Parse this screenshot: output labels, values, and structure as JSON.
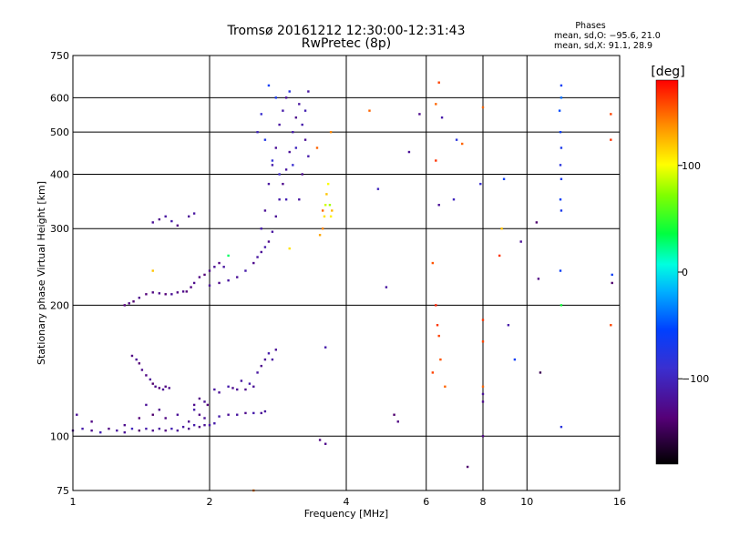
{
  "chart_data": {
    "type": "scatter",
    "title": "Tromsø 20161212 12:30:00-12:31:43",
    "subtitle": "RwPretec (8p)",
    "xlabel": "Frequency [MHz]",
    "ylabel": "Stationary phase Virtual Height [km]",
    "x_scale": "log",
    "y_scale": "log",
    "xlim": [
      1,
      16
    ],
    "ylim": [
      75,
      750
    ],
    "x_ticks": [
      1,
      2,
      4,
      6,
      8,
      10,
      16
    ],
    "x_tick_labels": [
      "1",
      "2",
      "4",
      "6",
      "8",
      "10",
      "16"
    ],
    "y_ticks": [
      75,
      100,
      200,
      300,
      400,
      500,
      600,
      750
    ],
    "y_tick_labels": [
      "75",
      "100",
      "200",
      "300",
      "400",
      "500",
      "600",
      "750"
    ],
    "grid": true,
    "stats": {
      "header": "Phases",
      "line_o": "mean, sd,O: −95.6, 21.0",
      "line_x": "mean, sd,X:  91.1, 28.9"
    },
    "colorbar": {
      "label": "[deg]",
      "range": [
        -180,
        180
      ],
      "ticks": [
        100,
        0,
        -100
      ],
      "tick_labels": [
        "100",
        "0",
        "−100"
      ]
    },
    "points": [
      [
        1.0,
        103,
        -120
      ],
      [
        1.05,
        104,
        -110
      ],
      [
        1.1,
        103,
        -125
      ],
      [
        1.15,
        102,
        -105
      ],
      [
        1.2,
        104,
        -130
      ],
      [
        1.25,
        103,
        -115
      ],
      [
        1.3,
        102,
        -120
      ],
      [
        1.35,
        104,
        -100
      ],
      [
        1.4,
        103,
        -140
      ],
      [
        1.45,
        104,
        -110
      ],
      [
        1.5,
        103,
        -125
      ],
      [
        1.55,
        104,
        -115
      ],
      [
        1.6,
        103,
        -130
      ],
      [
        1.65,
        104,
        -105
      ],
      [
        1.7,
        103,
        -120
      ],
      [
        1.75,
        105,
        -115
      ],
      [
        1.8,
        104,
        -125
      ],
      [
        1.85,
        106,
        -110
      ],
      [
        1.9,
        105,
        -130
      ],
      [
        1.95,
        106,
        -120
      ],
      [
        2.0,
        106,
        -115
      ],
      [
        2.05,
        107,
        -110
      ],
      [
        1.02,
        112,
        -120
      ],
      [
        1.1,
        108,
        -130
      ],
      [
        1.3,
        106,
        -125
      ],
      [
        1.4,
        110,
        -135
      ],
      [
        1.45,
        118,
        -120
      ],
      [
        1.5,
        112,
        -140
      ],
      [
        1.55,
        115,
        -125
      ],
      [
        1.6,
        110,
        -130
      ],
      [
        1.7,
        112,
        -120
      ],
      [
        1.8,
        108,
        -125
      ],
      [
        1.85,
        115,
        -110
      ],
      [
        1.9,
        112,
        -130
      ],
      [
        1.95,
        110,
        -120
      ],
      [
        2.1,
        111,
        -110
      ],
      [
        2.2,
        112,
        -120
      ],
      [
        2.3,
        112,
        -115
      ],
      [
        2.4,
        113,
        -125
      ],
      [
        2.5,
        113,
        -110
      ],
      [
        2.6,
        113,
        -120
      ],
      [
        2.65,
        114,
        -115
      ],
      [
        1.85,
        118,
        -125
      ],
      [
        1.9,
        122,
        -130
      ],
      [
        1.95,
        120,
        -120
      ],
      [
        1.98,
        118,
        -135
      ],
      [
        2.05,
        128,
        -115
      ],
      [
        2.1,
        126,
        -120
      ],
      [
        2.2,
        130,
        -110
      ],
      [
        2.25,
        129,
        -125
      ],
      [
        2.3,
        128,
        -120
      ],
      [
        2.35,
        134,
        -115
      ],
      [
        2.4,
        128,
        -125
      ],
      [
        2.45,
        132,
        -110
      ],
      [
        2.5,
        130,
        -120
      ],
      [
        2.55,
        140,
        -115
      ],
      [
        2.6,
        145,
        -125
      ],
      [
        2.65,
        150,
        -120
      ],
      [
        2.7,
        155,
        -110
      ],
      [
        2.75,
        150,
        -115
      ],
      [
        2.8,
        158,
        -120
      ],
      [
        1.35,
        153,
        -130
      ],
      [
        1.38,
        150,
        -120
      ],
      [
        1.4,
        147,
        -135
      ],
      [
        1.42,
        142,
        -125
      ],
      [
        1.45,
        138,
        -130
      ],
      [
        1.48,
        135,
        -120
      ],
      [
        1.5,
        132,
        -140
      ],
      [
        1.52,
        130,
        -125
      ],
      [
        1.55,
        129,
        -135
      ],
      [
        1.58,
        128,
        -120
      ],
      [
        1.6,
        130,
        -130
      ],
      [
        1.63,
        129,
        -125
      ],
      [
        1.3,
        200,
        -135
      ],
      [
        1.33,
        202,
        -130
      ],
      [
        1.36,
        204,
        -140
      ],
      [
        1.4,
        208,
        -125
      ],
      [
        1.45,
        212,
        -135
      ],
      [
        1.5,
        214,
        -130
      ],
      [
        1.55,
        213,
        -125
      ],
      [
        1.6,
        212,
        -135
      ],
      [
        1.65,
        212,
        -120
      ],
      [
        1.7,
        214,
        -130
      ],
      [
        1.75,
        215,
        -125
      ],
      [
        1.78,
        215,
        -135
      ],
      [
        1.82,
        220,
        -130
      ],
      [
        1.85,
        225,
        -125
      ],
      [
        1.9,
        232,
        -130
      ],
      [
        1.95,
        235,
        -135
      ],
      [
        2.0,
        240,
        -125
      ],
      [
        2.05,
        245,
        -120
      ],
      [
        2.1,
        250,
        -130
      ],
      [
        2.15,
        245,
        -115
      ],
      [
        2.0,
        222,
        -120
      ],
      [
        2.1,
        225,
        -125
      ],
      [
        2.2,
        228,
        -115
      ],
      [
        2.3,
        232,
        -120
      ],
      [
        2.4,
        240,
        -110
      ],
      [
        2.5,
        250,
        -125
      ],
      [
        2.55,
        258,
        -115
      ],
      [
        2.6,
        265,
        -120
      ],
      [
        2.65,
        272,
        -110
      ],
      [
        2.7,
        280,
        -125
      ],
      [
        2.75,
        295,
        -115
      ],
      [
        2.8,
        320,
        -120
      ],
      [
        2.85,
        350,
        -110
      ],
      [
        2.9,
        380,
        -125
      ],
      [
        2.95,
        410,
        -115
      ],
      [
        3.0,
        450,
        -120
      ],
      [
        3.05,
        500,
        -110
      ],
      [
        3.1,
        540,
        -125
      ],
      [
        3.15,
        580,
        -115
      ],
      [
        2.6,
        300,
        -110
      ],
      [
        2.65,
        330,
        -120
      ],
      [
        2.7,
        380,
        -115
      ],
      [
        2.75,
        420,
        -110
      ],
      [
        2.8,
        460,
        -120
      ],
      [
        2.85,
        520,
        -115
      ],
      [
        2.9,
        560,
        -110
      ],
      [
        2.95,
        600,
        -120
      ],
      [
        3.0,
        620,
        -80
      ],
      [
        2.7,
        640,
        -60
      ],
      [
        2.8,
        600,
        -70
      ],
      [
        2.6,
        550,
        -90
      ],
      [
        2.55,
        500,
        -100
      ],
      [
        2.65,
        480,
        -75
      ],
      [
        2.75,
        430,
        -85
      ],
      [
        2.85,
        400,
        -95
      ],
      [
        2.95,
        350,
        -105
      ],
      [
        3.05,
        420,
        -90
      ],
      [
        3.1,
        460,
        -100
      ],
      [
        3.2,
        520,
        -110
      ],
      [
        3.25,
        560,
        -105
      ],
      [
        3.3,
        620,
        -115
      ],
      [
        3.25,
        480,
        -120
      ],
      [
        3.3,
        440,
        -110
      ],
      [
        3.2,
        400,
        -125
      ],
      [
        3.15,
        350,
        -115
      ],
      [
        3.55,
        300,
        140
      ],
      [
        3.58,
        320,
        110
      ],
      [
        3.6,
        340,
        90
      ],
      [
        3.62,
        360,
        120
      ],
      [
        3.65,
        380,
        100
      ],
      [
        3.68,
        340,
        80
      ],
      [
        3.7,
        320,
        105
      ],
      [
        3.72,
        330,
        125
      ],
      [
        3.5,
        290,
        130
      ],
      [
        3.55,
        330,
        150
      ],
      [
        3.45,
        460,
        150
      ],
      [
        3.7,
        500,
        140
      ],
      [
        4.5,
        560,
        150
      ],
      [
        1.5,
        310,
        -120
      ],
      [
        1.55,
        315,
        -125
      ],
      [
        1.6,
        320,
        -115
      ],
      [
        1.65,
        312,
        -110
      ],
      [
        1.7,
        305,
        -130
      ],
      [
        1.8,
        320,
        -120
      ],
      [
        1.85,
        325,
        -115
      ],
      [
        3.6,
        160,
        -110
      ],
      [
        3.5,
        98,
        -130
      ],
      [
        3.6,
        96,
        -125
      ],
      [
        4.9,
        220,
        -115
      ],
      [
        5.1,
        112,
        -140
      ],
      [
        5.2,
        108,
        -130
      ],
      [
        5.5,
        450,
        -120
      ],
      [
        5.8,
        550,
        -125
      ],
      [
        6.3,
        580,
        150
      ],
      [
        6.4,
        650,
        160
      ],
      [
        6.3,
        430,
        165
      ],
      [
        6.2,
        250,
        155
      ],
      [
        6.3,
        200,
        170
      ],
      [
        6.35,
        180,
        165
      ],
      [
        6.4,
        170,
        160
      ],
      [
        6.45,
        150,
        155
      ],
      [
        6.2,
        140,
        160
      ],
      [
        6.6,
        130,
        150
      ],
      [
        6.5,
        540,
        -110
      ],
      [
        6.4,
        340,
        -120
      ],
      [
        6.9,
        350,
        -100
      ],
      [
        7.0,
        480,
        -80
      ],
      [
        7.2,
        470,
        150
      ],
      [
        7.4,
        85,
        -140
      ],
      [
        7.9,
        380,
        -90
      ],
      [
        8.0,
        570,
        150
      ],
      [
        8.0,
        185,
        165
      ],
      [
        8.0,
        165,
        160
      ],
      [
        8.0,
        130,
        150
      ],
      [
        8.0,
        125,
        -120
      ],
      [
        8.0,
        120,
        -125
      ],
      [
        8.0,
        100,
        -130
      ],
      [
        8.7,
        260,
        165
      ],
      [
        8.8,
        300,
        120
      ],
      [
        8.9,
        390,
        -60
      ],
      [
        9.1,
        180,
        -110
      ],
      [
        9.4,
        150,
        -60
      ],
      [
        9.7,
        280,
        -120
      ],
      [
        10.5,
        310,
        -140
      ],
      [
        10.6,
        230,
        -130
      ],
      [
        10.7,
        140,
        -150
      ],
      [
        11.9,
        640,
        -60
      ],
      [
        11.9,
        600,
        -40
      ],
      [
        11.8,
        560,
        -50
      ],
      [
        11.85,
        500,
        -60
      ],
      [
        11.9,
        460,
        -70
      ],
      [
        11.85,
        420,
        -80
      ],
      [
        11.9,
        390,
        -70
      ],
      [
        11.85,
        350,
        -60
      ],
      [
        11.9,
        330,
        -70
      ],
      [
        11.85,
        240,
        -60
      ],
      [
        11.9,
        200,
        40
      ],
      [
        11.9,
        105,
        -80
      ],
      [
        15.3,
        550,
        160
      ],
      [
        15.3,
        480,
        165
      ],
      [
        15.4,
        225,
        -140
      ],
      [
        15.4,
        235,
        -60
      ],
      [
        15.3,
        180,
        160
      ],
      [
        2.5,
        75,
        145
      ],
      [
        1.5,
        240,
        120
      ],
      [
        3.0,
        270,
        110
      ],
      [
        2.2,
        260,
        30
      ],
      [
        4.7,
        370,
        -100
      ]
    ]
  }
}
